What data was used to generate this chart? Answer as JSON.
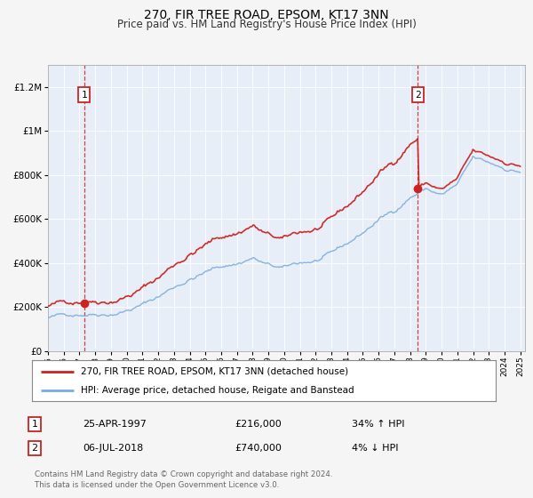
{
  "title": "270, FIR TREE ROAD, EPSOM, KT17 3NN",
  "subtitle": "Price paid vs. HM Land Registry's House Price Index (HPI)",
  "red_line_label": "270, FIR TREE ROAD, EPSOM, KT17 3NN (detached house)",
  "blue_line_label": "HPI: Average price, detached house, Reigate and Banstead",
  "transaction1_date": "25-APR-1997",
  "transaction1_price": "£216,000",
  "transaction1_hpi": "34% ↑ HPI",
  "transaction2_date": "06-JUL-2018",
  "transaction2_price": "£740,000",
  "transaction2_hpi": "4% ↓ HPI",
  "footer": "Contains HM Land Registry data © Crown copyright and database right 2024.\nThis data is licensed under the Open Government Licence v3.0.",
  "ylim": [
    0,
    1300000
  ],
  "xlim_min": 1995,
  "xlim_max": 2025.3,
  "background_color": "#f5f5f5",
  "plot_bg_color": "#e8eef7",
  "red_color": "#cc2222",
  "blue_color": "#7aaddd",
  "transaction1_x": 1997.3,
  "transaction2_x": 2018.5,
  "transaction1_y": 216000,
  "transaction2_y": 740000
}
